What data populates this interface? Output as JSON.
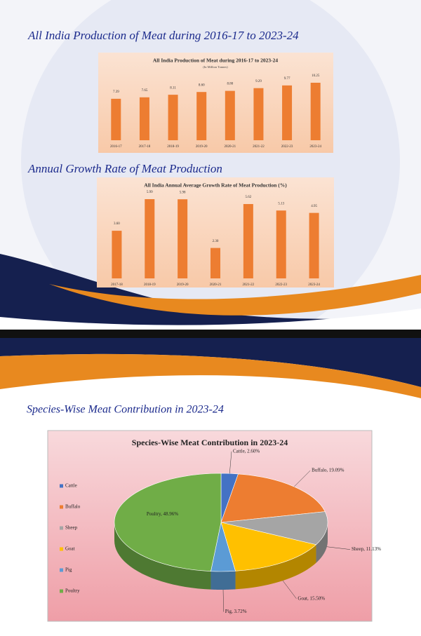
{
  "chart_data": [
    {
      "type": "bar",
      "heading": "All India Production of Meat during 2016-17 to 2023-24",
      "title": "All India Production  of Meat during  2016-17 to 2023-24",
      "subtitle": "(In Million Tonnes)",
      "categories": [
        "2016-17",
        "2017-18",
        "2018-19",
        "2019-20",
        "2020-21",
        "2021-22",
        "2022-23",
        "2023-24"
      ],
      "values": [
        7.39,
        7.65,
        8.11,
        8.6,
        8.8,
        9.29,
        9.77,
        10.25
      ],
      "value_labels": [
        "7.39",
        "7.65",
        "8.11",
        "8.60",
        "8.80",
        "9.29",
        "9.77",
        "10.25"
      ],
      "color": "#ed7d31"
    },
    {
      "type": "bar",
      "heading": "Annual Growth Rate of Meat Production",
      "title": "All India  Annual  Average Growth  Rate of Meat Production  (%)",
      "categories": [
        "2017-18",
        "2018-19",
        "2019-20",
        "2020-21",
        "2021-22",
        "2022-23",
        "2023-24"
      ],
      "values": [
        3.6,
        5.99,
        5.98,
        2.3,
        5.62,
        5.13,
        4.95
      ],
      "value_labels": [
        "3.60",
        "5.99",
        "5.98",
        "2.30",
        "5.62",
        "5.13",
        "4.95"
      ],
      "color": "#ed7d31"
    },
    {
      "type": "pie",
      "heading": "Species-Wise Meat Contribution in 2023-24",
      "title": "Species-Wise Meat Contribution in 2023-24",
      "categories": [
        "Cattle",
        "Buffalo",
        "Sheep",
        "Goat",
        "Pig",
        "Poultry"
      ],
      "values": [
        2.6,
        19.09,
        11.13,
        15.5,
        3.72,
        48.96
      ],
      "value_labels": [
        "Cattle, 2.60%",
        "Buffalo, 19.09%",
        "Sheep, 11.13%",
        "Goat, 15.50%",
        "Pig, 3.72%",
        "Poultry, 48.96%"
      ],
      "colors": [
        "#4472c4",
        "#ed7d31",
        "#a5a5a5",
        "#ffc000",
        "#5b9bd5",
        "#70ad47"
      ],
      "legend": "left"
    }
  ]
}
